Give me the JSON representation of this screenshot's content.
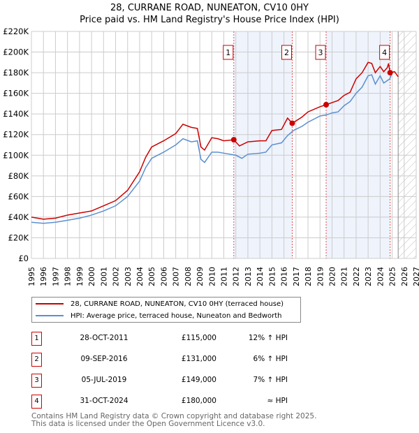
{
  "chart_data": {
    "type": "line",
    "title": "28, CURRANE ROAD, NUNEATON, CV10 0HY",
    "subtitle": "Price paid vs. HM Land Registry's House Price Index (HPI)",
    "xlim": [
      1995,
      2027
    ],
    "ylim": [
      0,
      220000
    ],
    "x_ticks": [
      "1995",
      "1996",
      "1997",
      "1998",
      "1999",
      "2000",
      "2001",
      "2002",
      "2003",
      "2004",
      "2005",
      "2006",
      "2007",
      "2008",
      "2009",
      "2010",
      "2011",
      "2012",
      "2013",
      "2014",
      "2015",
      "2016",
      "2017",
      "2018",
      "2019",
      "2020",
      "2021",
      "2022",
      "2023",
      "2024",
      "2025",
      "2026",
      "2027"
    ],
    "y_ticks": [
      {
        "v": 0,
        "label": "£0"
      },
      {
        "v": 20000,
        "label": "£20K"
      },
      {
        "v": 40000,
        "label": "£40K"
      },
      {
        "v": 60000,
        "label": "£60K"
      },
      {
        "v": 80000,
        "label": "£80K"
      },
      {
        "v": 100000,
        "label": "£100K"
      },
      {
        "v": 120000,
        "label": "£120K"
      },
      {
        "v": 140000,
        "label": "£140K"
      },
      {
        "v": 160000,
        "label": "£160K"
      },
      {
        "v": 180000,
        "label": "£180K"
      },
      {
        "v": 200000,
        "label": "£200K"
      },
      {
        "v": 220000,
        "label": "£220K"
      }
    ],
    "grid": true,
    "forecast_from": 2025.5,
    "series": [
      {
        "name": "28, CURRANE ROAD, NUNEATON, CV10 0HY (terraced house)",
        "color": "#cc0000",
        "x": [
          1995,
          1996,
          1997,
          1998,
          1999,
          2000,
          2001,
          2002,
          2003,
          2004,
          2004.5,
          2005,
          2006,
          2007,
          2007.6,
          2008.3,
          2008.8,
          2009.1,
          2009.4,
          2010,
          2010.5,
          2011,
          2011.83,
          2012.3,
          2013,
          2014,
          2014.5,
          2015,
          2015.8,
          2016.3,
          2016.69,
          2017.5,
          2018,
          2019,
          2019.51,
          2020,
          2020.5,
          2021,
          2021.5,
          2022,
          2022.5,
          2023,
          2023.3,
          2023.6,
          2024,
          2024.3,
          2024.6,
          2024.7,
          2024.83,
          2025.2,
          2025.5
        ],
        "y": [
          40000,
          38000,
          39000,
          42000,
          44000,
          46000,
          51000,
          56000,
          66000,
          84000,
          98000,
          108000,
          114000,
          121000,
          130000,
          127000,
          126000,
          108000,
          105000,
          117000,
          116000,
          114000,
          115000,
          109000,
          113000,
          114000,
          114000,
          124000,
          125000,
          136000,
          131000,
          137000,
          142000,
          147000,
          149000,
          151000,
          153000,
          158000,
          161000,
          174000,
          180000,
          190000,
          189000,
          180000,
          186000,
          181000,
          185000,
          189000,
          180000,
          181000,
          176000
        ]
      },
      {
        "name": "HPI: Average price, terraced house, Nuneaton and Bedworth",
        "color": "#5b8fd0",
        "x": [
          1995,
          1996,
          1997,
          1998,
          1999,
          2000,
          2001,
          2002,
          2003,
          2004,
          2004.5,
          2005,
          2006,
          2007,
          2007.6,
          2008.3,
          2008.8,
          2009.1,
          2009.4,
          2010,
          2010.5,
          2011,
          2012,
          2012.5,
          2013,
          2014,
          2014.5,
          2015,
          2015.8,
          2016.3,
          2016.8,
          2017.5,
          2018,
          2019,
          2019.5,
          2020,
          2020.5,
          2021,
          2021.5,
          2022,
          2022.5,
          2023,
          2023.3,
          2023.6,
          2024,
          2024.3,
          2024.8,
          2025
        ],
        "y": [
          35000,
          34000,
          35000,
          37000,
          39000,
          42000,
          46000,
          51000,
          60000,
          75000,
          88000,
          97000,
          103000,
          110000,
          116000,
          113000,
          114000,
          96000,
          93000,
          103000,
          103000,
          102000,
          100000,
          97000,
          101000,
          102000,
          103000,
          110000,
          112000,
          119000,
          124000,
          128000,
          132000,
          138000,
          139000,
          141000,
          142000,
          148000,
          152000,
          160000,
          166000,
          177000,
          178000,
          169000,
          177000,
          170000,
          174000,
          180000
        ]
      }
    ],
    "sales": [
      {
        "n": "1",
        "x": 2011.83,
        "y": 115000,
        "date": "28-OCT-2011",
        "price": "£115,000",
        "delta": "12% ↑ HPI"
      },
      {
        "n": "2",
        "x": 2016.69,
        "y": 131000,
        "date": "09-SEP-2016",
        "price": "£131,000",
        "delta": "6% ↑ HPI"
      },
      {
        "n": "3",
        "x": 2019.51,
        "y": 149000,
        "date": "05-JUL-2019",
        "price": "£149,000",
        "delta": "7% ↑ HPI"
      },
      {
        "n": "4",
        "x": 2024.83,
        "y": 180000,
        "date": "31-OCT-2024",
        "price": "£180,000",
        "delta": "≈ HPI"
      }
    ]
  },
  "footer": {
    "line1": "Contains HM Land Registry data © Crown copyright and database right 2025.",
    "line2": "This data is licensed under the Open Government Licence v3.0."
  }
}
